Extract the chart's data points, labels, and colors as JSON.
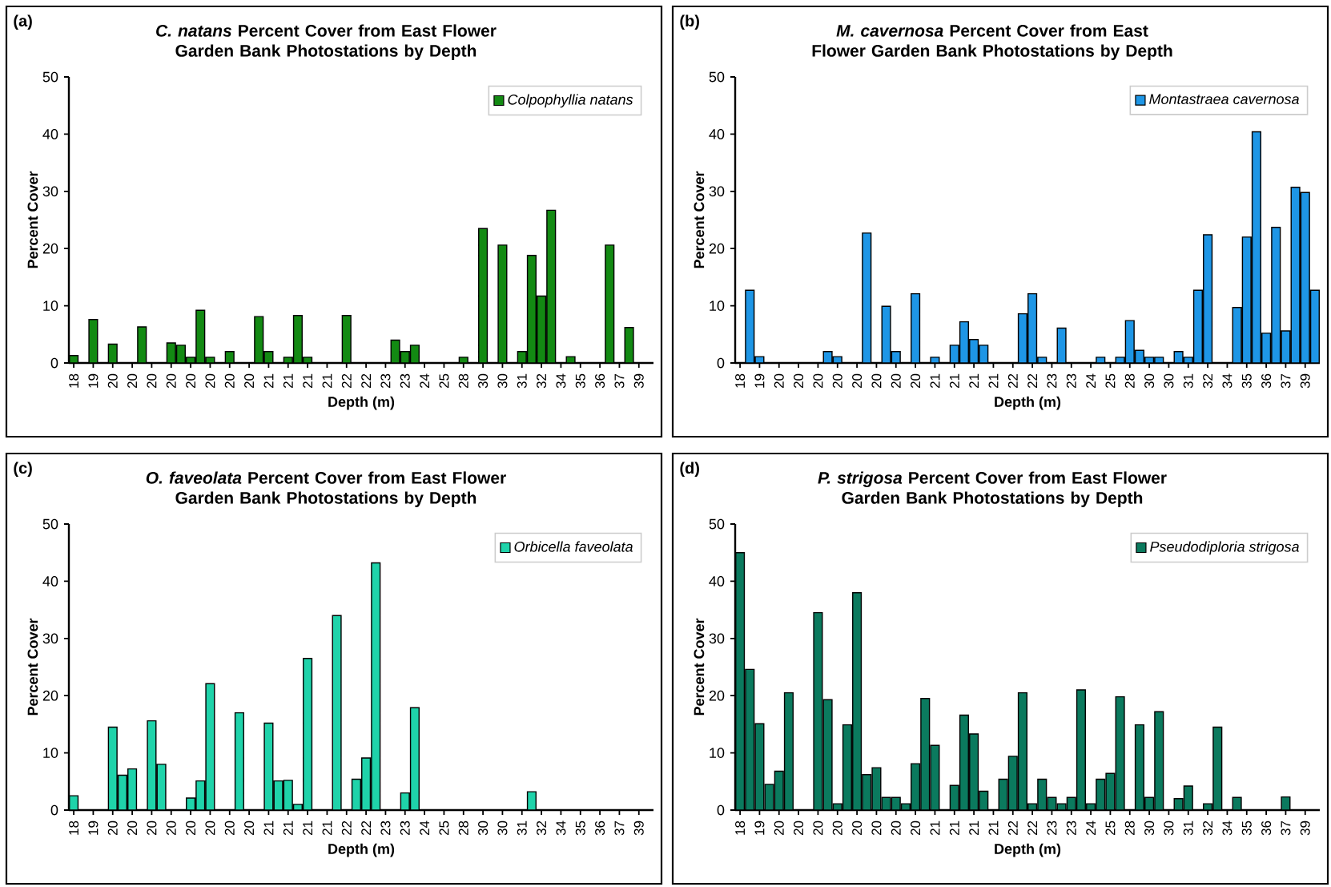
{
  "chart_data": [
    {
      "type": "bar",
      "title": "*C. natans* Percent Cover from East Flower Garden Bank Photostations by Depth",
      "xlabel": "Depth (m)",
      "ylabel": "Percent Cover",
      "annotations": [
        "(a)"
      ],
      "legend": "top right",
      "ylim": [
        0,
        50
      ],
      "yticks": [
        0,
        10,
        20,
        30,
        40,
        50
      ],
      "categories": [
        "18",
        null,
        "19",
        null,
        "20",
        null,
        "20",
        null,
        "20",
        null,
        "20",
        null,
        "20",
        null,
        "20",
        null,
        "20",
        null,
        "20",
        null,
        "21",
        null,
        "21",
        null,
        "21",
        null,
        "21",
        null,
        "22",
        null,
        "22",
        null,
        "23",
        null,
        "23",
        null,
        "24",
        null,
        "25",
        null,
        "28",
        null,
        "30",
        null,
        "30",
        null,
        "31",
        null,
        "32",
        null,
        "34",
        null,
        "35",
        null,
        "36",
        null,
        "37",
        null,
        "39",
        null
      ],
      "series": [
        {
          "name": "Colpophyllia natans",
          "color": "#138a13",
          "values": [
            1.3,
            null,
            7.6,
            null,
            3.3,
            null,
            null,
            6.3,
            null,
            null,
            3.5,
            3.1,
            1.0,
            9.2,
            1.0,
            null,
            2.0,
            null,
            null,
            8.1,
            2.0,
            null,
            1.0,
            8.3,
            1.0,
            null,
            null,
            null,
            8.3,
            null,
            null,
            null,
            null,
            4.0,
            2.0,
            3.1,
            null,
            null,
            null,
            null,
            1.0,
            null,
            23.5,
            null,
            20.6,
            null,
            2.0,
            18.8,
            11.7,
            26.7,
            null,
            1.1,
            null,
            null,
            null,
            20.6,
            null,
            6.2,
            null,
            null
          ]
        }
      ]
    },
    {
      "type": "bar",
      "title": "*M. cavernosa* Percent Cover from East Flower Garden Bank Photostations by Depth",
      "xlabel": "Depth (m)",
      "ylabel": "Percent Cover",
      "annotations": [
        "(b)"
      ],
      "legend": "top right",
      "ylim": [
        0,
        50
      ],
      "yticks": [
        0,
        10,
        20,
        30,
        40,
        50
      ],
      "categories": [
        "18",
        null,
        "19",
        null,
        "20",
        null,
        "20",
        null,
        "20",
        null,
        "20",
        null,
        "20",
        null,
        "20",
        null,
        "20",
        null,
        "20",
        null,
        "21",
        null,
        "21",
        null,
        "21",
        null,
        "21",
        null,
        "22",
        null,
        "22",
        null,
        "23",
        null,
        "23",
        null,
        "24",
        null,
        "25",
        null,
        "28",
        null,
        "30",
        null,
        "30",
        null,
        "31",
        null,
        "32",
        null,
        "34",
        null,
        "35",
        null,
        "36",
        null,
        "37",
        null,
        "39",
        null
      ],
      "series": [
        {
          "name": "Montastraea cavernosa",
          "color": "#1e96e6",
          "values": [
            null,
            12.7,
            1.1,
            null,
            null,
            null,
            null,
            null,
            null,
            2.0,
            1.1,
            null,
            null,
            22.7,
            null,
            9.9,
            2.0,
            null,
            12.1,
            null,
            1.0,
            null,
            3.1,
            7.2,
            4.1,
            3.1,
            null,
            null,
            null,
            8.6,
            12.1,
            1.0,
            null,
            6.1,
            null,
            null,
            null,
            1.0,
            null,
            1.0,
            7.4,
            2.2,
            1.0,
            1.0,
            null,
            2.0,
            1.0,
            12.7,
            22.4,
            null,
            null,
            9.7,
            22.0,
            40.4,
            5.2,
            23.7,
            5.6,
            30.7,
            29.8,
            12.7
          ]
        }
      ]
    },
    {
      "type": "bar",
      "title": "*O. faveolata* Percent Cover from East Flower Garden Bank Photostations by Depth",
      "xlabel": "Depth (m)",
      "ylabel": "Percent Cover",
      "annotations": [
        "(c)"
      ],
      "legend": "top right",
      "ylim": [
        0,
        50
      ],
      "yticks": [
        0,
        10,
        20,
        30,
        40,
        50
      ],
      "categories": [
        "18",
        null,
        "19",
        null,
        "20",
        null,
        "20",
        null,
        "20",
        null,
        "20",
        null,
        "20",
        null,
        "20",
        null,
        "20",
        null,
        "20",
        null,
        "21",
        null,
        "21",
        null,
        "21",
        null,
        "21",
        null,
        "22",
        null,
        "22",
        null,
        "23",
        null,
        "23",
        null,
        "24",
        null,
        "25",
        null,
        "28",
        null,
        "30",
        null,
        "30",
        null,
        "31",
        null,
        "32",
        null,
        "34",
        null,
        "35",
        null,
        "36",
        null,
        "37",
        null,
        "39",
        null
      ],
      "series": [
        {
          "name": "Orbicella faveolata",
          "color": "#1fd3aa",
          "values": [
            2.5,
            null,
            null,
            null,
            14.5,
            6.1,
            7.2,
            null,
            15.6,
            8.0,
            null,
            null,
            2.1,
            5.1,
            22.1,
            null,
            null,
            17.0,
            null,
            null,
            15.2,
            5.1,
            5.2,
            1.0,
            26.5,
            null,
            null,
            34.0,
            null,
            5.4,
            9.1,
            43.2,
            null,
            null,
            3.0,
            17.9,
            null,
            null,
            null,
            null,
            null,
            null,
            null,
            null,
            null,
            null,
            null,
            3.2,
            null,
            null,
            null,
            null,
            null,
            null,
            null,
            null,
            null,
            null,
            null,
            null
          ]
        }
      ]
    },
    {
      "type": "bar",
      "title": "*P. strigosa* Percent Cover from East Flower Garden Bank Photostations by Depth",
      "xlabel": "Depth (m)",
      "ylabel": "Percent Cover",
      "annotations": [
        "(d)"
      ],
      "legend": "top right",
      "ylim": [
        0,
        50
      ],
      "yticks": [
        0,
        10,
        20,
        30,
        40,
        50
      ],
      "categories": [
        "18",
        null,
        "19",
        null,
        "20",
        null,
        "20",
        null,
        "20",
        null,
        "20",
        null,
        "20",
        null,
        "20",
        null,
        "20",
        null,
        "20",
        null,
        "21",
        null,
        "21",
        null,
        "21",
        null,
        "21",
        null,
        "22",
        null,
        "22",
        null,
        "23",
        null,
        "23",
        null,
        "24",
        null,
        "25",
        null,
        "28",
        null,
        "30",
        null,
        "30",
        null,
        "31",
        null,
        "32",
        null,
        "34",
        null,
        "35",
        null,
        "36",
        null,
        "37",
        null,
        "39",
        null
      ],
      "series": [
        {
          "name": "Pseudodiploria strigosa",
          "color": "#0b7a5e",
          "values": [
            45.0,
            24.6,
            15.1,
            4.5,
            6.8,
            20.5,
            null,
            null,
            34.5,
            19.3,
            1.1,
            14.9,
            38.0,
            6.2,
            7.4,
            2.2,
            2.2,
            1.1,
            8.1,
            19.5,
            11.3,
            null,
            4.3,
            16.6,
            13.3,
            3.3,
            null,
            5.4,
            9.4,
            20.5,
            1.1,
            5.4,
            2.2,
            1.1,
            2.2,
            21.0,
            1.1,
            5.4,
            6.4,
            19.8,
            null,
            14.9,
            2.2,
            17.2,
            null,
            2.0,
            4.2,
            null,
            1.1,
            14.5,
            null,
            2.2,
            null,
            null,
            null,
            null,
            2.3,
            null,
            null,
            null
          ]
        }
      ]
    }
  ]
}
